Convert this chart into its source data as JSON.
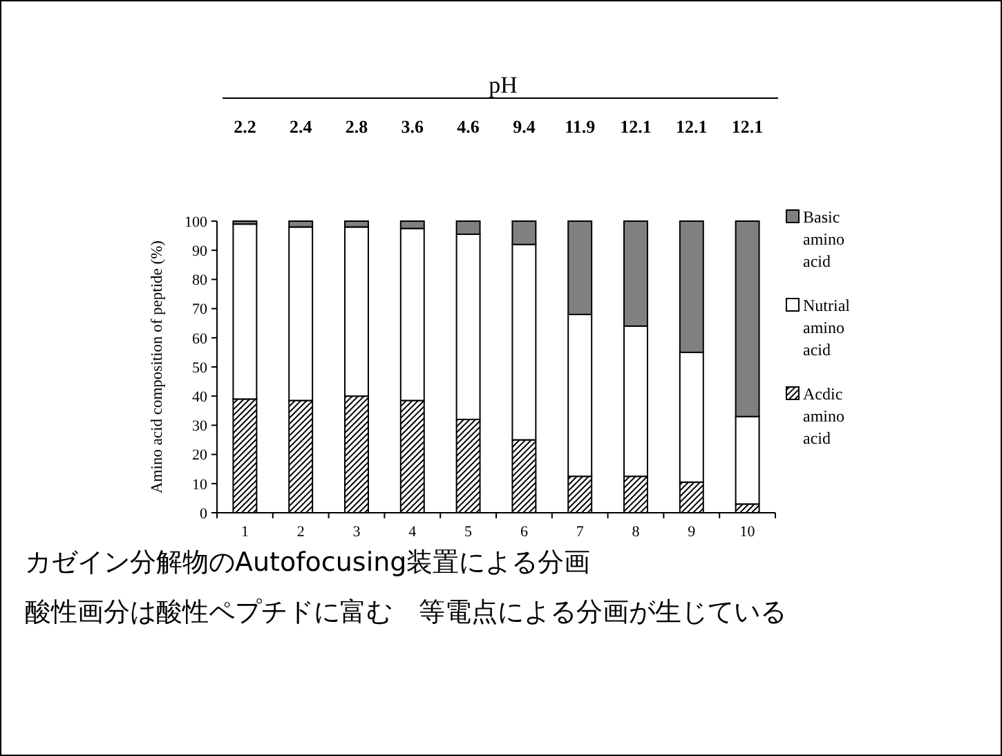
{
  "chart_data": {
    "type": "bar",
    "stacked": true,
    "x2label": "pH",
    "ylabel": "Amino acid composition of peptide (%)",
    "categories": [
      "1",
      "2",
      "3",
      "4",
      "5",
      "6",
      "7",
      "8",
      "9",
      "10"
    ],
    "series": [
      {
        "name": "Acdic amino acid",
        "color": "#000000",
        "values": [
          39,
          38.5,
          40,
          38.5,
          32,
          25,
          12.5,
          12.5,
          10.5,
          3
        ]
      },
      {
        "name": "Nutrial amino acid",
        "color": "#ffffff",
        "values": [
          60,
          59.5,
          58,
          59,
          63.5,
          67,
          55.5,
          51.5,
          44.5,
          30
        ]
      },
      {
        "name": "Basic amino acid",
        "color": "#808080",
        "values": [
          1,
          2,
          2,
          2.5,
          4.5,
          8,
          32,
          36,
          45,
          67
        ]
      }
    ],
    "ylim": [
      0,
      100
    ],
    "yticks": [
      0,
      10,
      20,
      30,
      40,
      50,
      60,
      70,
      80,
      90,
      100
    ],
    "grid": false,
    "legend": "right",
    "annotations": [
      "2.2",
      "2.4",
      "2.8",
      "3.6",
      "4.6",
      "9.4",
      "11.9",
      "12.1",
      "12.1",
      "12.1",
      "カゼイン分解物のAutofocusing装置による分画",
      "酸性画分は酸性ペプチドに富む　等電点による分画が生じている"
    ]
  }
}
